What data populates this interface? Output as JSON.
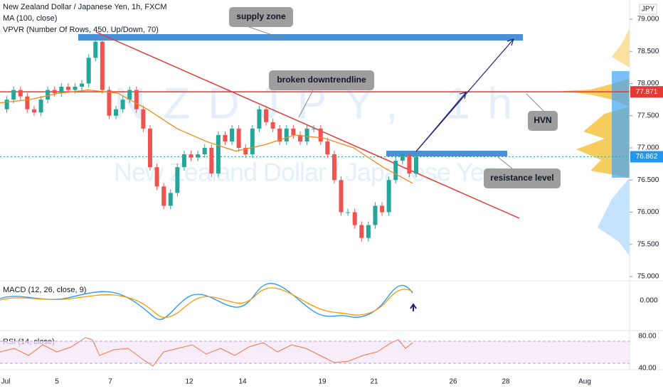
{
  "header": {
    "title": "New Zealand Dollar / Japanese Yen, 1h, FXCM",
    "ma": "MA (100, close)",
    "vpvr": "VPVR (Number Of Rows, 450, Up/Down, 70)"
  },
  "watermark": {
    "symbol": "NZDJPY, 1h",
    "name": "New Zealand Dollar / Japanese Yen"
  },
  "currency": "JPY",
  "price_axis": {
    "ticks": [
      {
        "value": 79,
        "label": "79.000"
      },
      {
        "value": 78.5,
        "label": "78.500"
      },
      {
        "value": 78,
        "label": "78.000"
      },
      {
        "value": 77.5,
        "label": "77.500"
      },
      {
        "value": 77,
        "label": "77.000"
      },
      {
        "value": 76.5,
        "label": "76.500"
      },
      {
        "value": 76,
        "label": "76.000"
      },
      {
        "value": 75.5,
        "label": "75.500"
      },
      {
        "value": 75,
        "label": "75.000"
      }
    ],
    "hvn_level": {
      "value": 77.871,
      "label": "77.871"
    },
    "last_price": {
      "value": 76.862,
      "label": "76.862"
    }
  },
  "price": {
    "closes": [
      77.6,
      77.75,
      77.9,
      77.8,
      77.6,
      77.55,
      77.75,
      77.9,
      77.85,
      77.95,
      77.9,
      77.95,
      78.0,
      78.4,
      78.65,
      77.9,
      77.5,
      77.6,
      77.75,
      77.9,
      77.6,
      77.3,
      76.7,
      76.4,
      76.1,
      76.3,
      76.7,
      76.9,
      76.85,
      76.9,
      77.0,
      76.6,
      77.2,
      77.1,
      77.3,
      77.0,
      76.9,
      77.3,
      77.6,
      77.4,
      77.3,
      77.1,
      77.3,
      77.2,
      77.1,
      77.3,
      77.3,
      77.1,
      76.9,
      76.5,
      76.0,
      76.0,
      75.8,
      75.6,
      75.8,
      76.1,
      76.0,
      76.5,
      76.8,
      76.9,
      76.6,
      76.862
    ],
    "ma": [
      77.7,
      77.75,
      77.85,
      77.9,
      77.85,
      77.6,
      77.3,
      77.1,
      76.95,
      77.05,
      77.2,
      77.15,
      77.0,
      76.7,
      76.45
    ]
  },
  "annotations": {
    "supply_zone": "supply zone",
    "downtrend": "broken downtrendline",
    "hvn": "HVN",
    "resistance": "resistance level"
  },
  "macd": {
    "label": "MACD (12, 26, close, 9)",
    "zero": {
      "value": 0,
      "label": "0.000"
    }
  },
  "rsi": {
    "label": "RSI (14, close)",
    "ticks": [
      {
        "value": 80,
        "label": "80.00"
      },
      {
        "value": 40,
        "label": "40.00"
      }
    ]
  },
  "date_axis": {
    "labels": [
      "Jul",
      "5",
      "7",
      "12",
      "14",
      "19",
      "21",
      "26",
      "28",
      "Aug"
    ]
  }
}
